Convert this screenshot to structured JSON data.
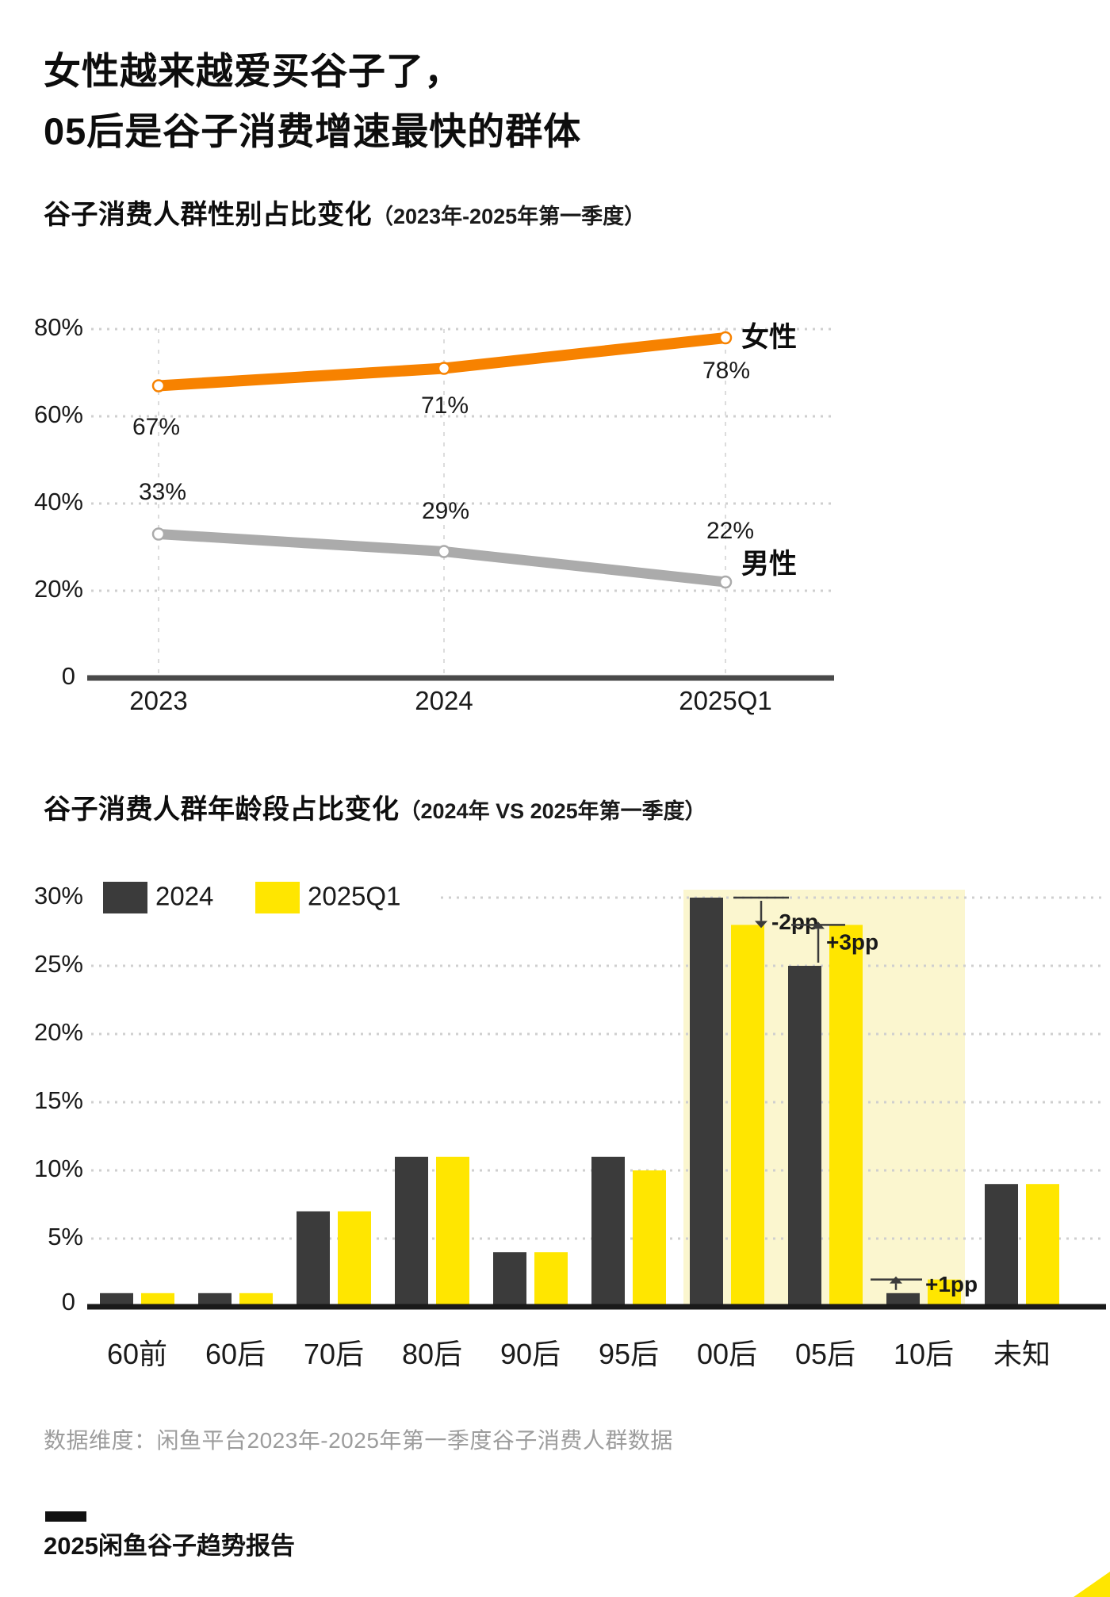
{
  "page": {
    "title_line1": "女性越来越爱买谷子了，",
    "title_line2": "05后是谷子消费增速最快的群体",
    "source_note": "数据维度：闲鱼平台2023年-2025年第一季度谷子消费人群数据",
    "report_name": "2025闲鱼谷子趋势报告"
  },
  "colors": {
    "female_orange": "#F78200",
    "male_gray": "#ABABAB",
    "bar_dark": "#3B3B3B",
    "bar_yellow": "#FFE600",
    "highlight_bg": "#FBF6CF",
    "grid_gray": "#CFCFCF",
    "page_bg": "#FFFFFF"
  },
  "chart_data": [
    {
      "type": "line",
      "title": "谷子消费人群性别占比变化",
      "subtitle": "（2023年-2025年第一季度）",
      "x": [
        "2023",
        "2024",
        "2025Q1"
      ],
      "series": [
        {
          "name": "女性",
          "color": "#F78200",
          "values": [
            67,
            71,
            78
          ],
          "labels": [
            "67%",
            "71%",
            "78%"
          ]
        },
        {
          "name": "男性",
          "color": "#ABABAB",
          "values": [
            33,
            29,
            22
          ],
          "labels": [
            "33%",
            "29%",
            "22%"
          ]
        }
      ],
      "ylim": [
        0,
        80
      ],
      "yticks": [
        "80%",
        "60%",
        "40%",
        "20%",
        "0"
      ],
      "grid": "dotted-horizontal, dashed-vertical-guides",
      "legend_position": "line-end-labels"
    },
    {
      "type": "bar",
      "title": "谷子消费人群年龄段占比变化",
      "subtitle": "（2024年 VS 2025年第一季度）",
      "categories": [
        "60前",
        "60后",
        "70后",
        "80后",
        "90后",
        "95后",
        "00后",
        "05后",
        "10后",
        "未知"
      ],
      "series": [
        {
          "name": "2024",
          "color": "#3B3B3B",
          "values": [
            1,
            1,
            7,
            11,
            4,
            11,
            30,
            25,
            1,
            9
          ]
        },
        {
          "name": "2025Q1",
          "color": "#FFE600",
          "values": [
            1,
            1,
            7,
            11,
            4,
            10,
            28,
            28,
            2,
            9
          ]
        }
      ],
      "ylim": [
        0,
        30
      ],
      "yticks": [
        "30%",
        "25%",
        "20%",
        "15%",
        "10%",
        "5%",
        "0"
      ],
      "grid": "dotted-horizontal",
      "legend_position": "top-left",
      "highlight": {
        "from": "00后",
        "to": "10后",
        "color": "#FBF6CF"
      },
      "annotations": [
        {
          "category": "00后",
          "label": "-2pp",
          "direction": "down"
        },
        {
          "category": "05后",
          "label": "+3pp",
          "direction": "up"
        },
        {
          "category": "10后",
          "label": "+1pp",
          "direction": "up"
        }
      ]
    }
  ]
}
